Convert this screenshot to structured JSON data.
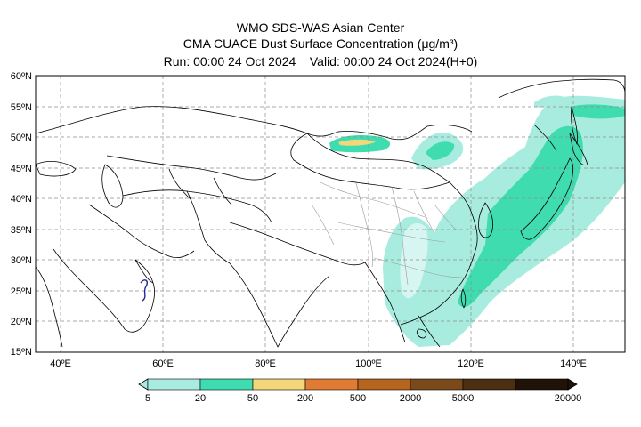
{
  "header": {
    "line1": "WMO SDS-WAS Asian Center",
    "line2": "CMA CUACE Dust Surface Concentration (μg/m³)",
    "run_label": "Run: 00:00 24 Oct 2024",
    "valid_label": "Valid: 00:00 24 Oct 2024(H+0)"
  },
  "map": {
    "lat_labels": [
      "60ºN",
      "55ºN",
      "50ºN",
      "45ºN",
      "40ºN",
      "35ºN",
      "30ºN",
      "25ºN",
      "20ºN",
      "15ºN"
    ],
    "lon_labels": [
      "40ºE",
      "60ºE",
      "80ºE",
      "100ºE",
      "120ºE",
      "140ºE"
    ],
    "lon_range": [
      35,
      150
    ],
    "lat_range": [
      15,
      60
    ]
  },
  "colorbar": {
    "labels": [
      "5",
      "20",
      "50",
      "200",
      "500",
      "2000",
      "5000",
      "20000"
    ],
    "colors": [
      "#a8ece0",
      "#3fdcb0",
      "#f4d77a",
      "#e07b34",
      "#b5651d",
      "#7a4a1b",
      "#4a2f12",
      "#201207"
    ]
  }
}
